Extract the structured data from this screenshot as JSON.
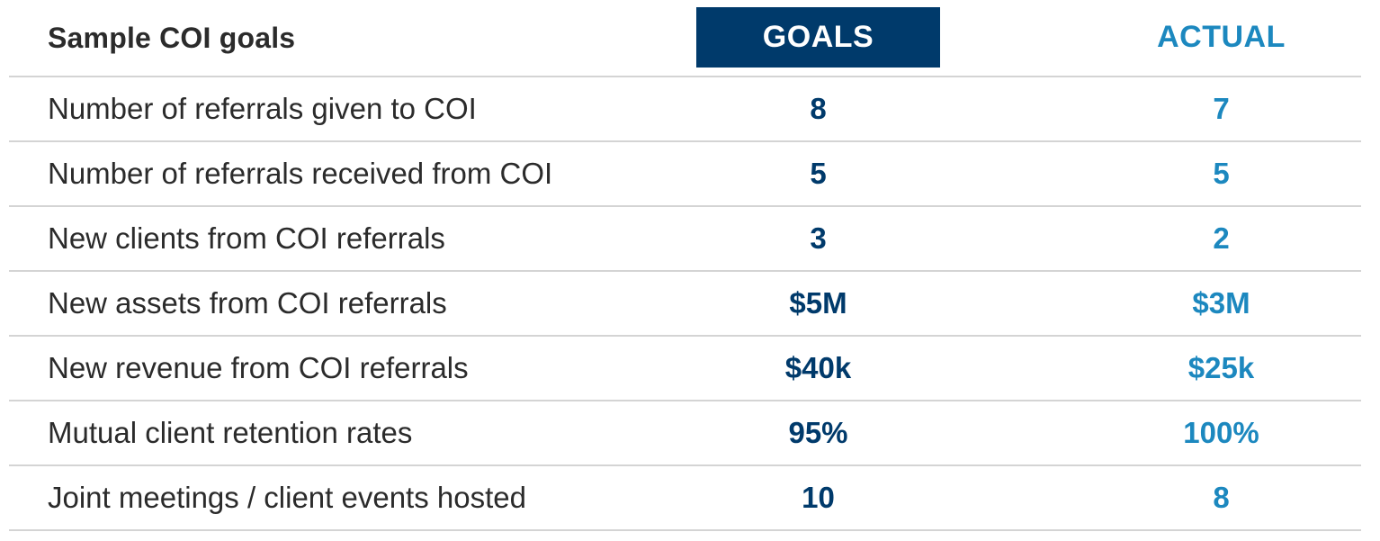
{
  "header": {
    "title": "Sample COI goals",
    "goals_label": "GOALS",
    "actual_label": "ACTUAL"
  },
  "colors": {
    "goals_accent": "#003a6b",
    "actual_accent": "#1c88bf",
    "text": "#2b2b2b",
    "divider": "#d4d4d4"
  },
  "rows": [
    {
      "label": "Number of referrals given to COI",
      "goal": "8",
      "actual": "7"
    },
    {
      "label": "Number of referrals received from COI",
      "goal": "5",
      "actual": "5"
    },
    {
      "label": "New clients from COI referrals",
      "goal": "3",
      "actual": "2"
    },
    {
      "label": "New assets from COI referrals",
      "goal": "$5M",
      "actual": "$3M"
    },
    {
      "label": "New revenue from COI referrals",
      "goal": "$40k",
      "actual": "$25k"
    },
    {
      "label": "Mutual client retention rates",
      "goal": "95%",
      "actual": "100%"
    },
    {
      "label": "Joint meetings / client events hosted",
      "goal": "10",
      "actual": "8"
    }
  ]
}
